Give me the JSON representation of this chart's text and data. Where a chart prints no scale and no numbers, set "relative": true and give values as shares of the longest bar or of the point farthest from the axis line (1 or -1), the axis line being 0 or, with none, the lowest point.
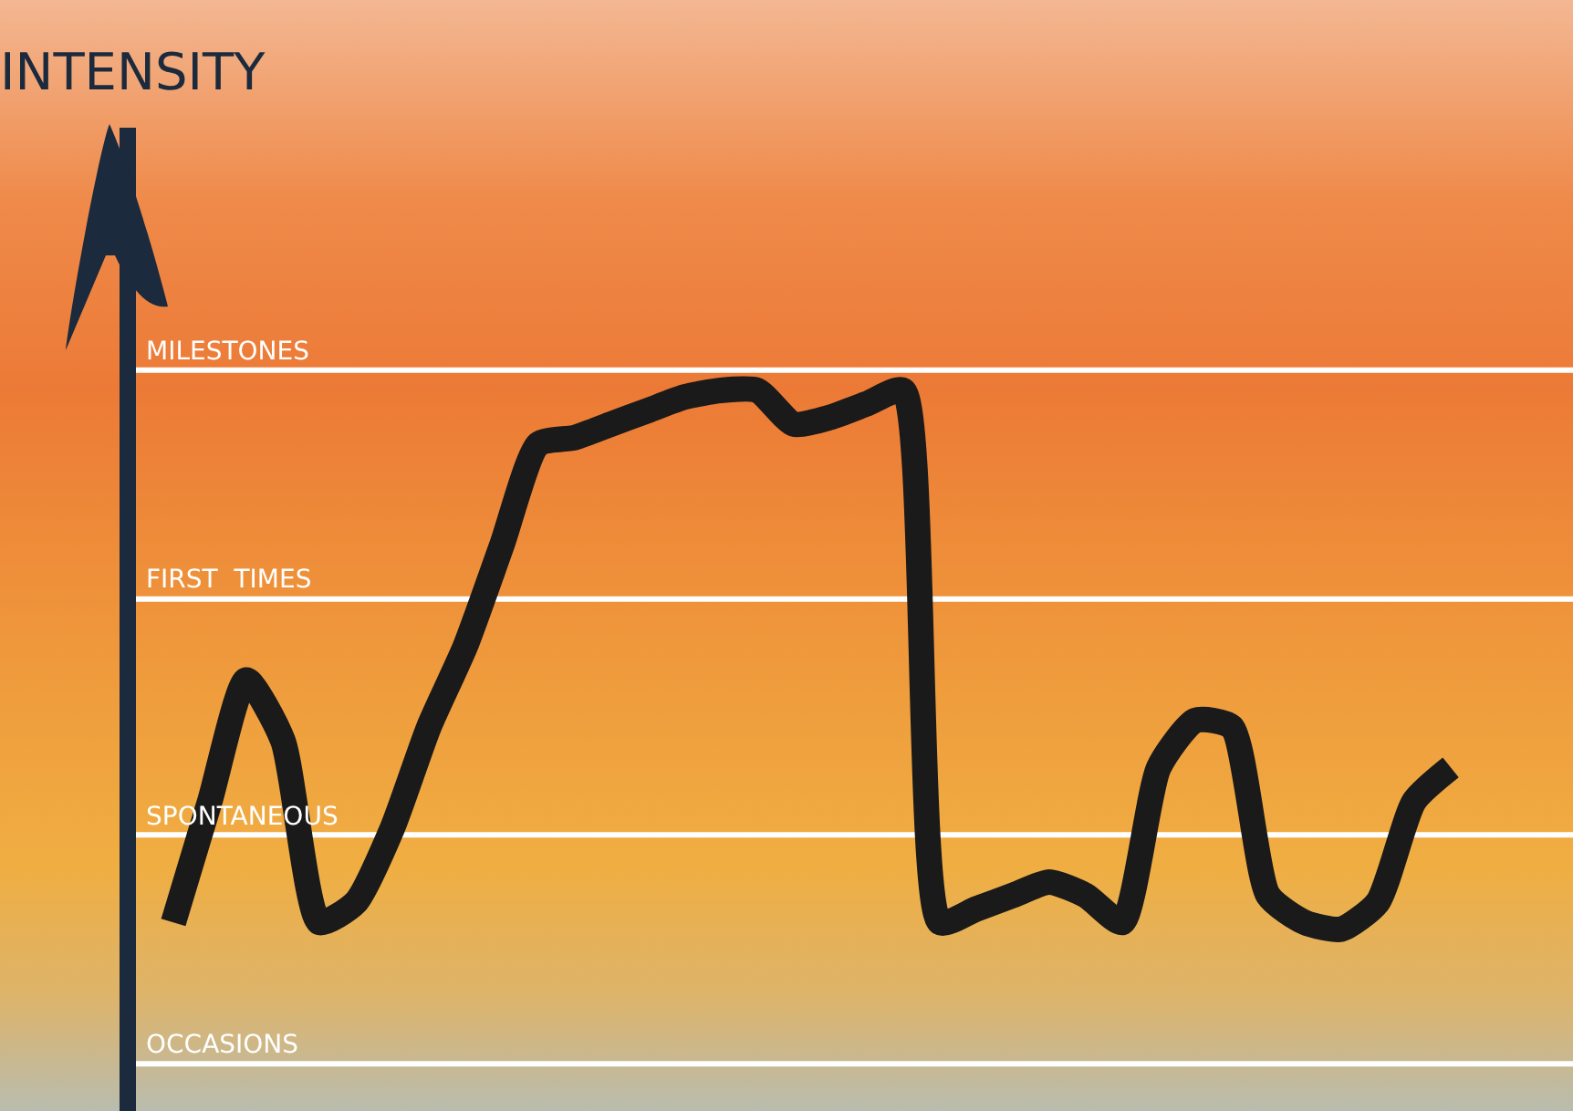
{
  "chart_data": {
    "type": "line",
    "annotations": [
      "INTENSITY"
    ],
    "relative": true,
    "categories": [
      null,
      null,
      null,
      null,
      null,
      null,
      null,
      null,
      null,
      null,
      null,
      null,
      null,
      null,
      null,
      null,
      null,
      null,
      null,
      null,
      null,
      null,
      null,
      null,
      null,
      null,
      null,
      null,
      null,
      null,
      null,
      null,
      null,
      null,
      null,
      null
    ],
    "series": [
      {
        "color": "#1a1a1a",
        "values": [
          0.21,
          0.39,
          0.57,
          0.48,
          0.21,
          0.24,
          0.35,
          0.5,
          0.62,
          0.77,
          0.92,
          0.93,
          0.95,
          0.97,
          0.99,
          1,
          1,
          0.95,
          0.96,
          0.98,
          1,
          0.21,
          0.23,
          0.25,
          0.27,
          0.25,
          0.21,
          0.44,
          0.51,
          0.5,
          0.25,
          0.21,
          0.2,
          0.24,
          0.39,
          0.44
        ]
      }
    ],
    "ref_lines": [
      {
        "axis": "y",
        "value": 0,
        "label": "OCCASIONS",
        "color": "#ffffff"
      },
      {
        "axis": "y",
        "value": 0.34,
        "label": "SPONTANEOUS",
        "color": "#ffffff"
      },
      {
        "axis": "y",
        "value": 0.69,
        "label": "FIRST  TIMES",
        "color": "#ffffff"
      },
      {
        "axis": "y",
        "value": 1.03,
        "label": "MILESTONES",
        "color": "#ffffff"
      }
    ],
    "marker": "none",
    "line_style": "solid"
  }
}
